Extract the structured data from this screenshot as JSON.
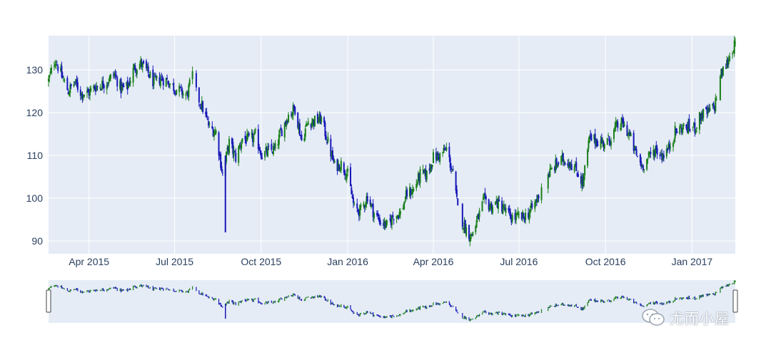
{
  "chart_data": {
    "type": "candlestick",
    "x_range": [
      "2015-02-17",
      "2017-02-16"
    ],
    "ylim": [
      87,
      138
    ],
    "y_ticks": [
      90,
      100,
      110,
      120,
      130
    ],
    "x_ticks": [
      {
        "date": "2015-04-01",
        "label": "Apr 2015"
      },
      {
        "date": "2015-07-01",
        "label": "Jul 2015"
      },
      {
        "date": "2015-10-01",
        "label": "Oct 2015"
      },
      {
        "date": "2016-01-01",
        "label": "Jan 2016"
      },
      {
        "date": "2016-04-01",
        "label": "Apr 2016"
      },
      {
        "date": "2016-07-01",
        "label": "Jul 2016"
      },
      {
        "date": "2016-10-01",
        "label": "Oct 2016"
      },
      {
        "date": "2017-01-01",
        "label": "Jan 2017"
      }
    ],
    "close_trend": [
      [
        "2015-02-17",
        127.5
      ],
      [
        "2015-02-24",
        132.5
      ],
      [
        "2015-03-03",
        128.5
      ],
      [
        "2015-03-10",
        125.0
      ],
      [
        "2015-03-17",
        127.0
      ],
      [
        "2015-03-24",
        124.5
      ],
      [
        "2015-03-31",
        124.5
      ],
      [
        "2015-04-07",
        126.0
      ],
      [
        "2015-04-14",
        126.5
      ],
      [
        "2015-04-21",
        127.5
      ],
      [
        "2015-04-28",
        129.0
      ],
      [
        "2015-05-05",
        125.5
      ],
      [
        "2015-05-12",
        126.0
      ],
      [
        "2015-05-19",
        130.5
      ],
      [
        "2015-05-26",
        131.5
      ],
      [
        "2015-06-02",
        129.5
      ],
      [
        "2015-06-09",
        127.0
      ],
      [
        "2015-06-16",
        128.0
      ],
      [
        "2015-06-23",
        127.5
      ],
      [
        "2015-06-30",
        126.0
      ],
      [
        "2015-07-07",
        125.0
      ],
      [
        "2015-07-14",
        124.0
      ],
      [
        "2015-07-21",
        129.5
      ],
      [
        "2015-07-24",
        124.5
      ],
      [
        "2015-07-31",
        121.0
      ],
      [
        "2015-08-07",
        116.5
      ],
      [
        "2015-08-14",
        115.5
      ],
      [
        "2015-08-21",
        105.5
      ],
      [
        "2015-08-28",
        113.0
      ],
      [
        "2015-09-04",
        109.5
      ],
      [
        "2015-09-11",
        114.0
      ],
      [
        "2015-09-18",
        113.5
      ],
      [
        "2015-09-25",
        114.5
      ],
      [
        "2015-10-02",
        110.0
      ],
      [
        "2015-10-09",
        111.0
      ],
      [
        "2015-10-16",
        111.5
      ],
      [
        "2015-10-23",
        116.0
      ],
      [
        "2015-10-30",
        119.5
      ],
      [
        "2015-11-06",
        121.0
      ],
      [
        "2015-11-13",
        113.5
      ],
      [
        "2015-11-20",
        118.0
      ],
      [
        "2015-11-27",
        118.0
      ],
      [
        "2015-12-04",
        118.5
      ],
      [
        "2015-12-11",
        113.0
      ],
      [
        "2015-12-18",
        107.5
      ],
      [
        "2015-12-25",
        108.0
      ],
      [
        "2016-01-01",
        105.5
      ],
      [
        "2016-01-08",
        97.5
      ],
      [
        "2016-01-15",
        97.0
      ],
      [
        "2016-01-22",
        100.5
      ],
      [
        "2016-01-29",
        96.5
      ],
      [
        "2016-02-05",
        94.5
      ],
      [
        "2016-02-12",
        93.5
      ],
      [
        "2016-02-19",
        96.0
      ],
      [
        "2016-02-26",
        96.5
      ],
      [
        "2016-03-04",
        101.0
      ],
      [
        "2016-03-11",
        102.0
      ],
      [
        "2016-03-18",
        105.5
      ],
      [
        "2016-03-25",
        105.5
      ],
      [
        "2016-04-01",
        109.5
      ],
      [
        "2016-04-08",
        110.0
      ],
      [
        "2016-04-15",
        111.5
      ],
      [
        "2016-04-22",
        105.5
      ],
      [
        "2016-04-27",
        97.5
      ],
      [
        "2016-05-04",
        93.5
      ],
      [
        "2016-05-11",
        91.0
      ],
      [
        "2016-05-18",
        95.0
      ],
      [
        "2016-05-25",
        99.5
      ],
      [
        "2016-06-01",
        98.0
      ],
      [
        "2016-06-08",
        99.0
      ],
      [
        "2016-06-15",
        97.5
      ],
      [
        "2016-06-22",
        95.5
      ],
      [
        "2016-06-29",
        95.5
      ],
      [
        "2016-07-06",
        95.5
      ],
      [
        "2016-07-13",
        97.0
      ],
      [
        "2016-07-20",
        99.5
      ],
      [
        "2016-07-27",
        104.5
      ],
      [
        "2016-08-03",
        106.0
      ],
      [
        "2016-08-10",
        108.0
      ],
      [
        "2016-08-17",
        109.0
      ],
      [
        "2016-08-24",
        108.5
      ],
      [
        "2016-08-31",
        106.5
      ],
      [
        "2016-09-07",
        103.5
      ],
      [
        "2016-09-14",
        114.0
      ],
      [
        "2016-09-21",
        113.5
      ],
      [
        "2016-09-28",
        113.0
      ],
      [
        "2016-10-05",
        113.5
      ],
      [
        "2016-10-12",
        116.5
      ],
      [
        "2016-10-19",
        117.5
      ],
      [
        "2016-10-26",
        115.0
      ],
      [
        "2016-11-02",
        110.5
      ],
      [
        "2016-11-09",
        107.5
      ],
      [
        "2016-11-16",
        109.5
      ],
      [
        "2016-11-23",
        111.5
      ],
      [
        "2016-11-30",
        110.0
      ],
      [
        "2016-12-07",
        111.5
      ],
      [
        "2016-12-14",
        115.5
      ],
      [
        "2016-12-21",
        116.5
      ],
      [
        "2016-12-28",
        116.5
      ],
      [
        "2017-01-04",
        116.5
      ],
      [
        "2017-01-11",
        119.5
      ],
      [
        "2017-01-18",
        120.0
      ],
      [
        "2017-01-25",
        121.5
      ],
      [
        "2017-01-31",
        128.5
      ],
      [
        "2017-02-07",
        131.5
      ],
      [
        "2017-02-14",
        135.5
      ]
    ],
    "gaps": [
      [
        "2015-07-20",
        "2015-07-24"
      ],
      [
        "2016-04-27",
        "2016-05-02"
      ],
      [
        "2016-07-25",
        "2016-08-01"
      ],
      [
        "2017-01-27",
        "2017-01-31"
      ]
    ],
    "spikes": [
      {
        "date": "2015-08-24",
        "low": 92.0,
        "high": 110.0
      }
    ],
    "increasing_color": "#2ca02c",
    "decreasing_color": "#1f1fbf",
    "grid": true,
    "rangeslider": true
  },
  "colors": {
    "plot_bg": "#e5ecf6",
    "grid": "#ffffff",
    "increasing": "#1a7f1a",
    "decreasing": "#1818b8"
  },
  "watermark": {
    "text": "尤而小屋",
    "icon": "chat-bubbles-icon"
  }
}
